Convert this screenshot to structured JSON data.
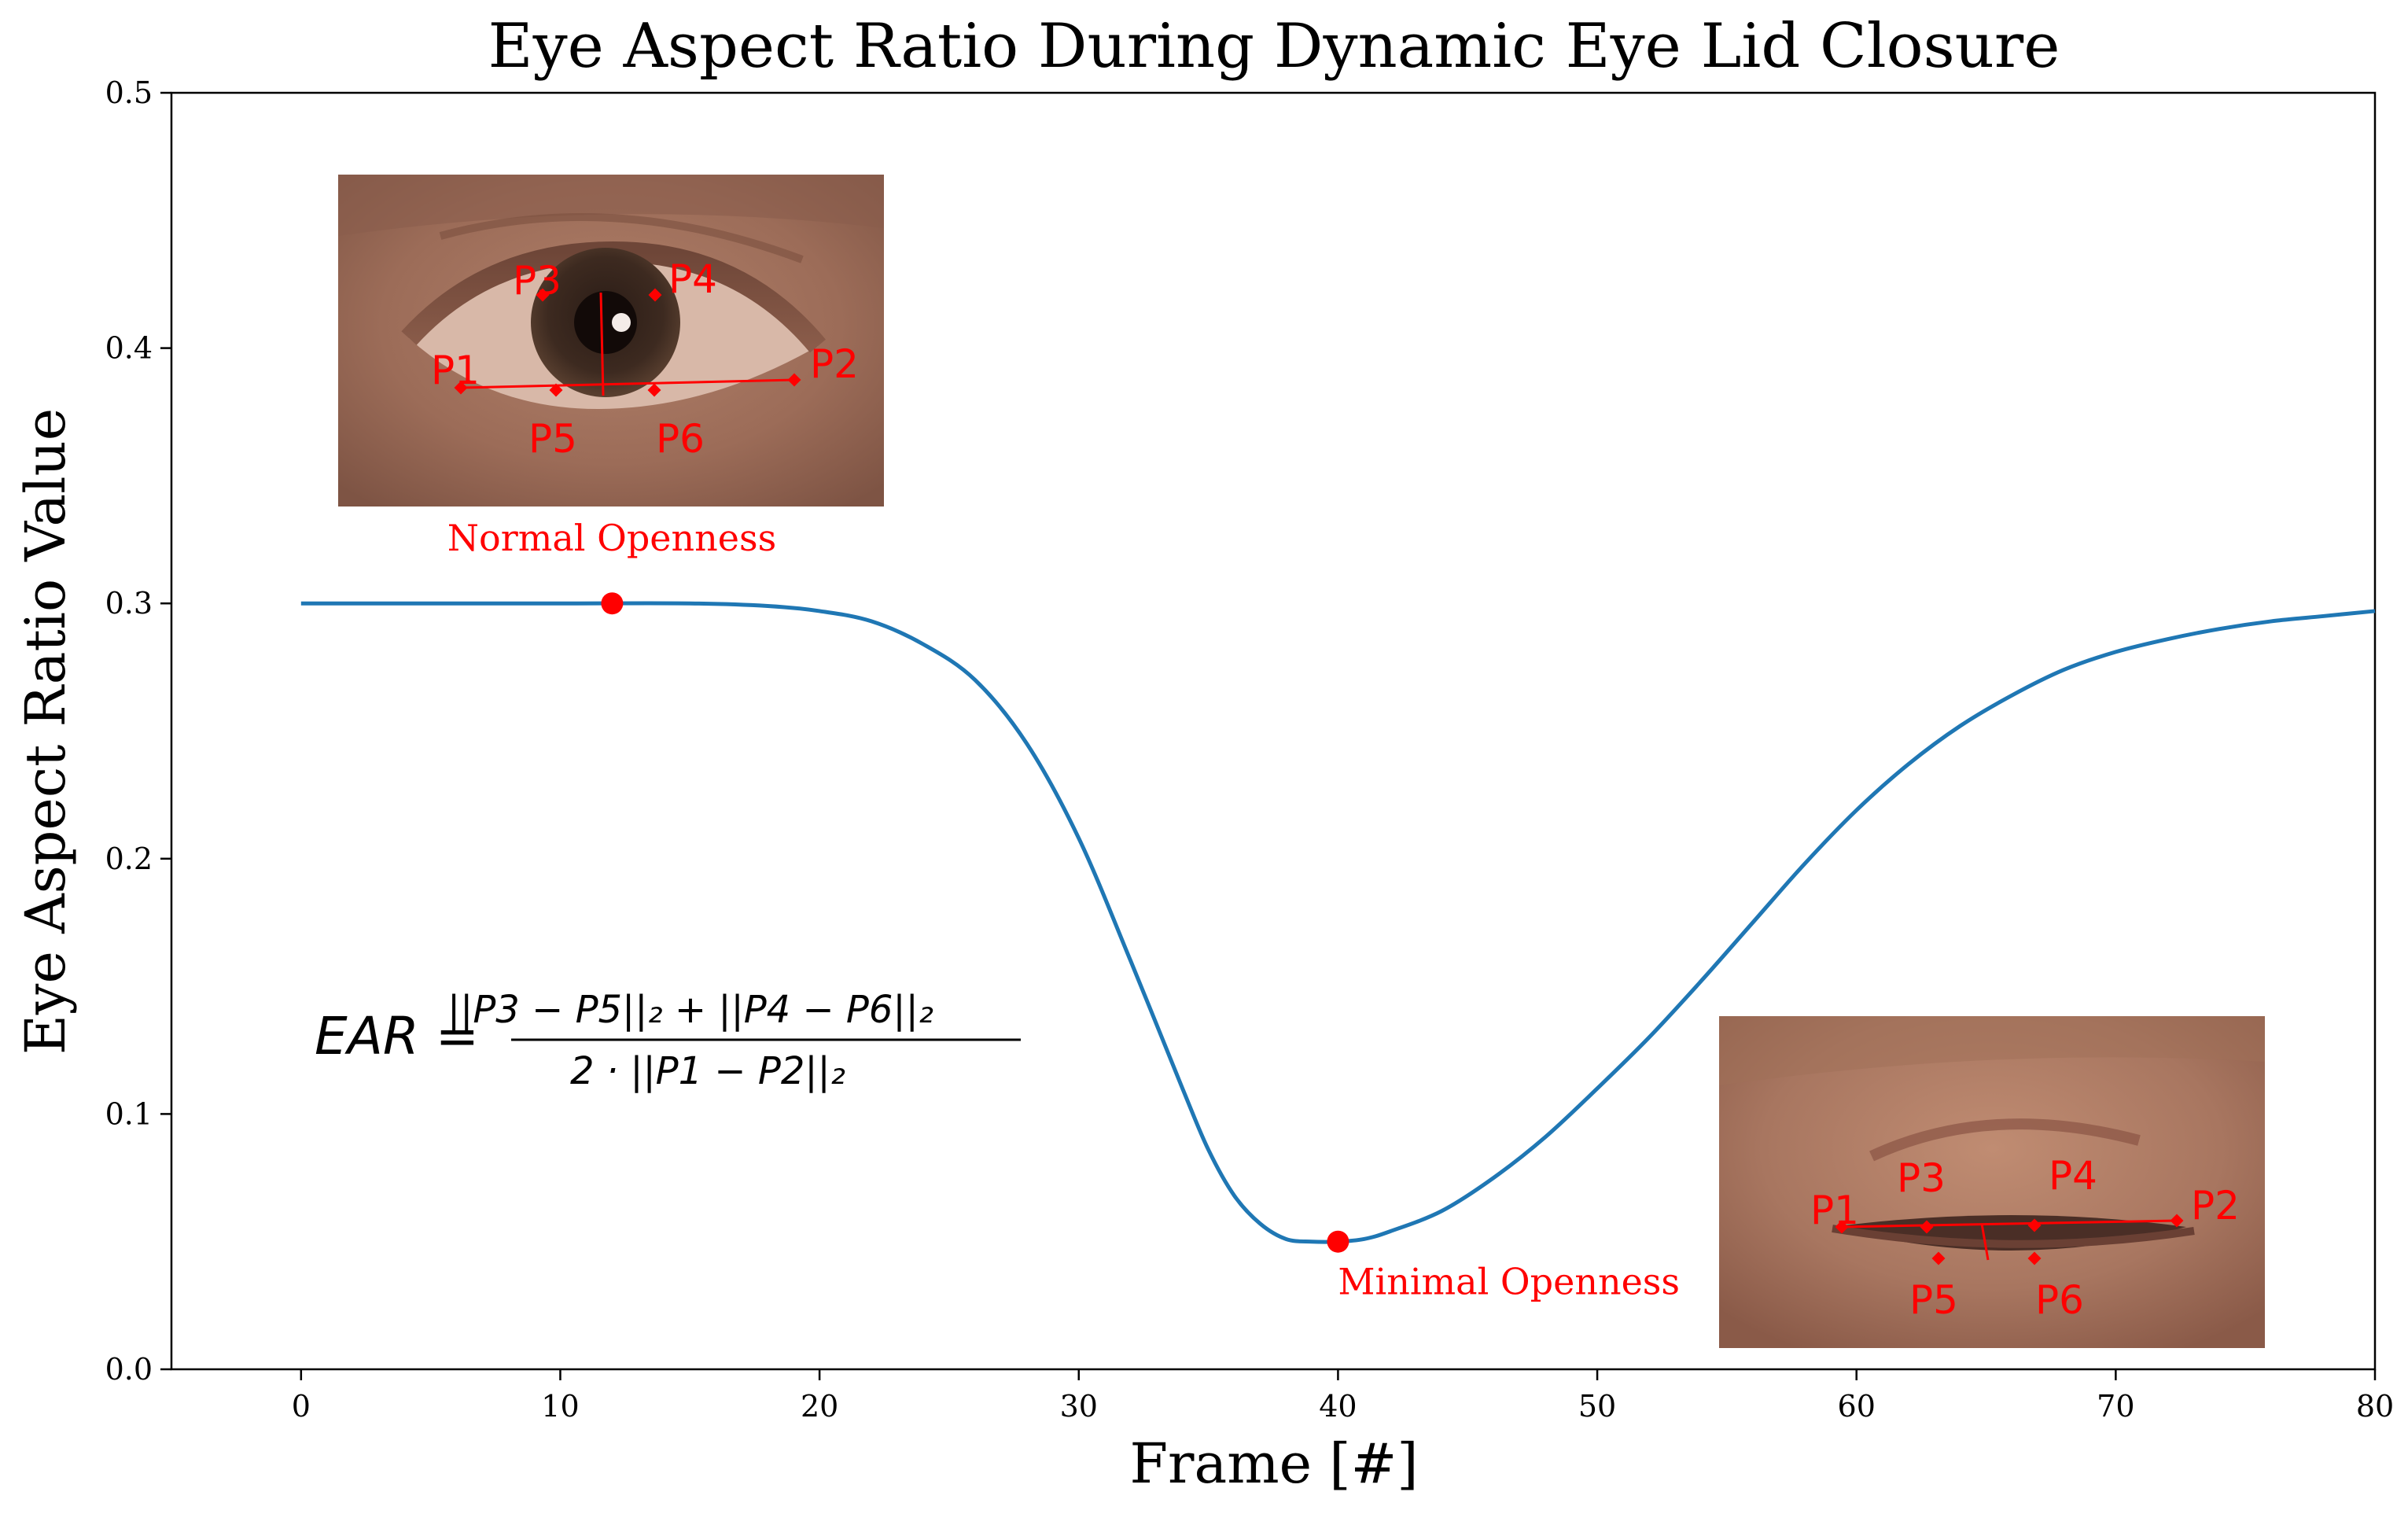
{
  "chart_data": {
    "type": "line",
    "title": "Eye Aspect Ratio During Dynamic Eye Lid Closure",
    "xlabel": "Frame [#]",
    "ylabel": "Eye Aspect Ratio Value",
    "xlim": [
      -5,
      80
    ],
    "ylim": [
      0.0,
      0.5
    ],
    "x_ticks": [
      "0",
      "10",
      "20",
      "30",
      "40",
      "50",
      "60",
      "70",
      "80"
    ],
    "y_ticks": [
      "0.0",
      "0.1",
      "0.2",
      "0.3",
      "0.4",
      "0.5"
    ],
    "grid": false,
    "series": [
      {
        "color": "#1f77b4",
        "x": [
          0,
          5,
          10,
          15,
          18,
          20,
          22,
          24,
          26,
          28,
          30,
          32,
          34,
          35,
          36,
          37,
          38,
          39,
          40,
          41,
          42,
          44,
          46,
          48,
          50,
          52,
          54,
          56,
          58,
          60,
          62,
          64,
          66,
          68,
          70,
          72,
          74,
          76,
          78,
          80
        ],
        "y": [
          0.3,
          0.3,
          0.3,
          0.3,
          0.299,
          0.297,
          0.293,
          0.284,
          0.27,
          0.245,
          0.208,
          0.16,
          0.11,
          0.086,
          0.068,
          0.057,
          0.051,
          0.05,
          0.05,
          0.051,
          0.054,
          0.062,
          0.075,
          0.091,
          0.11,
          0.13,
          0.152,
          0.175,
          0.198,
          0.219,
          0.237,
          0.252,
          0.264,
          0.274,
          0.281,
          0.286,
          0.29,
          0.293,
          0.295,
          0.297
        ]
      }
    ],
    "highlight_points": [
      {
        "x": 12,
        "y": 0.3,
        "label": "Normal Openness",
        "color": "#ff0000"
      },
      {
        "x": 40,
        "y": 0.05,
        "label": "Minimal Openness",
        "color": "#ff0000"
      }
    ],
    "formula": {
      "lhs": "EAR =",
      "numerator": "||P3 − P5||₂ + ||P4 − P6||₂",
      "denominator": "2 · ||P1 − P2||₂"
    },
    "inset_images": [
      {
        "name": "normal-openness-eye",
        "landmarks": [
          "P1",
          "P2",
          "P3",
          "P4",
          "P5",
          "P6"
        ]
      },
      {
        "name": "minimal-openness-eye",
        "landmarks": [
          "P1",
          "P2",
          "P3",
          "P4",
          "P5",
          "P6"
        ]
      }
    ]
  }
}
